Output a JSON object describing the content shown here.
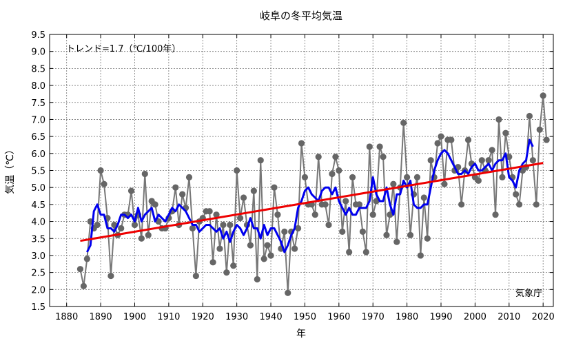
{
  "chart_data": {
    "type": "line",
    "title": "岐阜の冬平均気温",
    "xlabel": "年",
    "ylabel": "気温（℃）",
    "xlim": [
      1875,
      2023
    ],
    "ylim": [
      1.5,
      9.5
    ],
    "x_ticks": [
      1880,
      1890,
      1900,
      1910,
      1920,
      1930,
      1940,
      1950,
      1960,
      1970,
      1980,
      1990,
      2000,
      2010,
      2020
    ],
    "x_tick_labels": [
      "1880",
      "1890",
      "1900",
      "1910",
      "1920",
      "1930",
      "1940",
      "1950",
      "1960",
      "1970",
      "1980",
      "1990",
      "2000",
      "2010",
      "2020"
    ],
    "y_ticks": [
      1.5,
      2.0,
      2.5,
      3.0,
      3.5,
      4.0,
      4.5,
      5.0,
      5.5,
      6.0,
      6.5,
      7.0,
      7.5,
      8.0,
      8.5,
      9.0,
      9.5
    ],
    "y_tick_labels": [
      "1.5",
      "2.0",
      "2.5",
      "3.0",
      "3.5",
      "4.0",
      "4.5",
      "5.0",
      "5.5",
      "6.0",
      "6.5",
      "7.0",
      "7.5",
      "8.0",
      "8.5",
      "9.0",
      "9.5"
    ],
    "grid": true,
    "trend_text": "トレンド=1.7（℃/100年）",
    "source_text": "気象庁",
    "x_start": 1884,
    "series": [
      {
        "style": "gray-line-markers",
        "color": "#777777",
        "marker_color": "#666666",
        "values": [
          2.6,
          2.1,
          2.9,
          4.0,
          3.8,
          3.9,
          5.5,
          5.1,
          4.1,
          2.4,
          3.9,
          3.6,
          3.8,
          4.2,
          4.2,
          4.9,
          3.9,
          4.2,
          3.5,
          5.4,
          3.6,
          4.6,
          4.5,
          4.0,
          3.8,
          3.8,
          4.1,
          4.3,
          5.0,
          3.9,
          4.8,
          4.4,
          5.3,
          3.8,
          2.4,
          4.0,
          4.1,
          4.3,
          4.3,
          2.8,
          4.2,
          3.2,
          3.9,
          2.5,
          3.9,
          2.7,
          5.5,
          4.1,
          4.7,
          3.9,
          3.3,
          4.9,
          2.3,
          5.8,
          2.9,
          3.3,
          3.0,
          5.0,
          4.2,
          3.2,
          3.7,
          1.9,
          3.7,
          3.2,
          3.8,
          6.3,
          5.3,
          4.5,
          4.5,
          4.2,
          5.9,
          4.5,
          4.5,
          3.9,
          5.4,
          5.9,
          5.5,
          3.7,
          4.6,
          3.1,
          5.3,
          4.5,
          4.5,
          3.7,
          3.1,
          6.2,
          4.2,
          4.6,
          6.2,
          5.9,
          3.6,
          4.2,
          5.1,
          3.4,
          5.0,
          6.9,
          5.3,
          3.6,
          4.8,
          5.3,
          3.0,
          4.7,
          3.5,
          5.8,
          5.3,
          6.3,
          6.5,
          5.1,
          6.4,
          6.4,
          5.5,
          5.6,
          4.5,
          5.5,
          6.4,
          5.7,
          5.3,
          5.2,
          5.8,
          5.5,
          5.8,
          6.1,
          4.2,
          7.0,
          5.3,
          6.6,
          5.9,
          5.3,
          4.8,
          4.5,
          5.5,
          5.6,
          7.1,
          5.8,
          4.5,
          6.7,
          7.7,
          6.4
        ]
      },
      {
        "style": "moving-average",
        "color": "#0000ee",
        "values": [
          null,
          null,
          3.1,
          3.3,
          4.3,
          4.5,
          4.2,
          4.2,
          3.8,
          3.8,
          3.7,
          3.9,
          4.2,
          4.2,
          4.1,
          4.2,
          4.0,
          4.4,
          4.0,
          4.2,
          4.3,
          4.4,
          4.0,
          4.2,
          4.1,
          4.0,
          4.2,
          4.4,
          4.3,
          4.5,
          4.4,
          4.3,
          4.1,
          3.9,
          3.9,
          3.7,
          3.8,
          3.9,
          3.9,
          3.8,
          3.7,
          3.8,
          3.5,
          3.7,
          3.4,
          3.7,
          3.9,
          3.8,
          3.6,
          3.8,
          4.1,
          3.8,
          3.8,
          3.5,
          3.9,
          3.6,
          3.8,
          3.8,
          3.6,
          3.4,
          3.1,
          3.3,
          3.6,
          3.8,
          4.4,
          4.6,
          4.9,
          5.0,
          4.8,
          4.7,
          4.6,
          4.9,
          5.0,
          5.0,
          4.8,
          5.0,
          4.6,
          4.4,
          4.2,
          4.4,
          4.2,
          4.2,
          4.4,
          4.4,
          4.4,
          4.6,
          5.3,
          4.8,
          4.6,
          4.6,
          5.0,
          4.5,
          4.2,
          4.8,
          4.8,
          5.2,
          5.0,
          5.2,
          4.5,
          4.4,
          4.4,
          4.5,
          4.5,
          5.0,
          5.5,
          5.8,
          6.0,
          6.1,
          6.0,
          5.8,
          5.6,
          5.4,
          5.4,
          5.5,
          5.4,
          5.6,
          5.7,
          5.5,
          5.5,
          5.6,
          5.7,
          5.5,
          5.7,
          5.8,
          5.8,
          6.0,
          5.3,
          5.2,
          5.0,
          5.5,
          5.7,
          5.8,
          6.4,
          6.2,
          null,
          null
        ]
      },
      {
        "style": "trend-line",
        "color": "#ee0000",
        "x": [
          1884,
          2020
        ],
        "values": [
          3.43,
          5.72
        ]
      }
    ]
  }
}
